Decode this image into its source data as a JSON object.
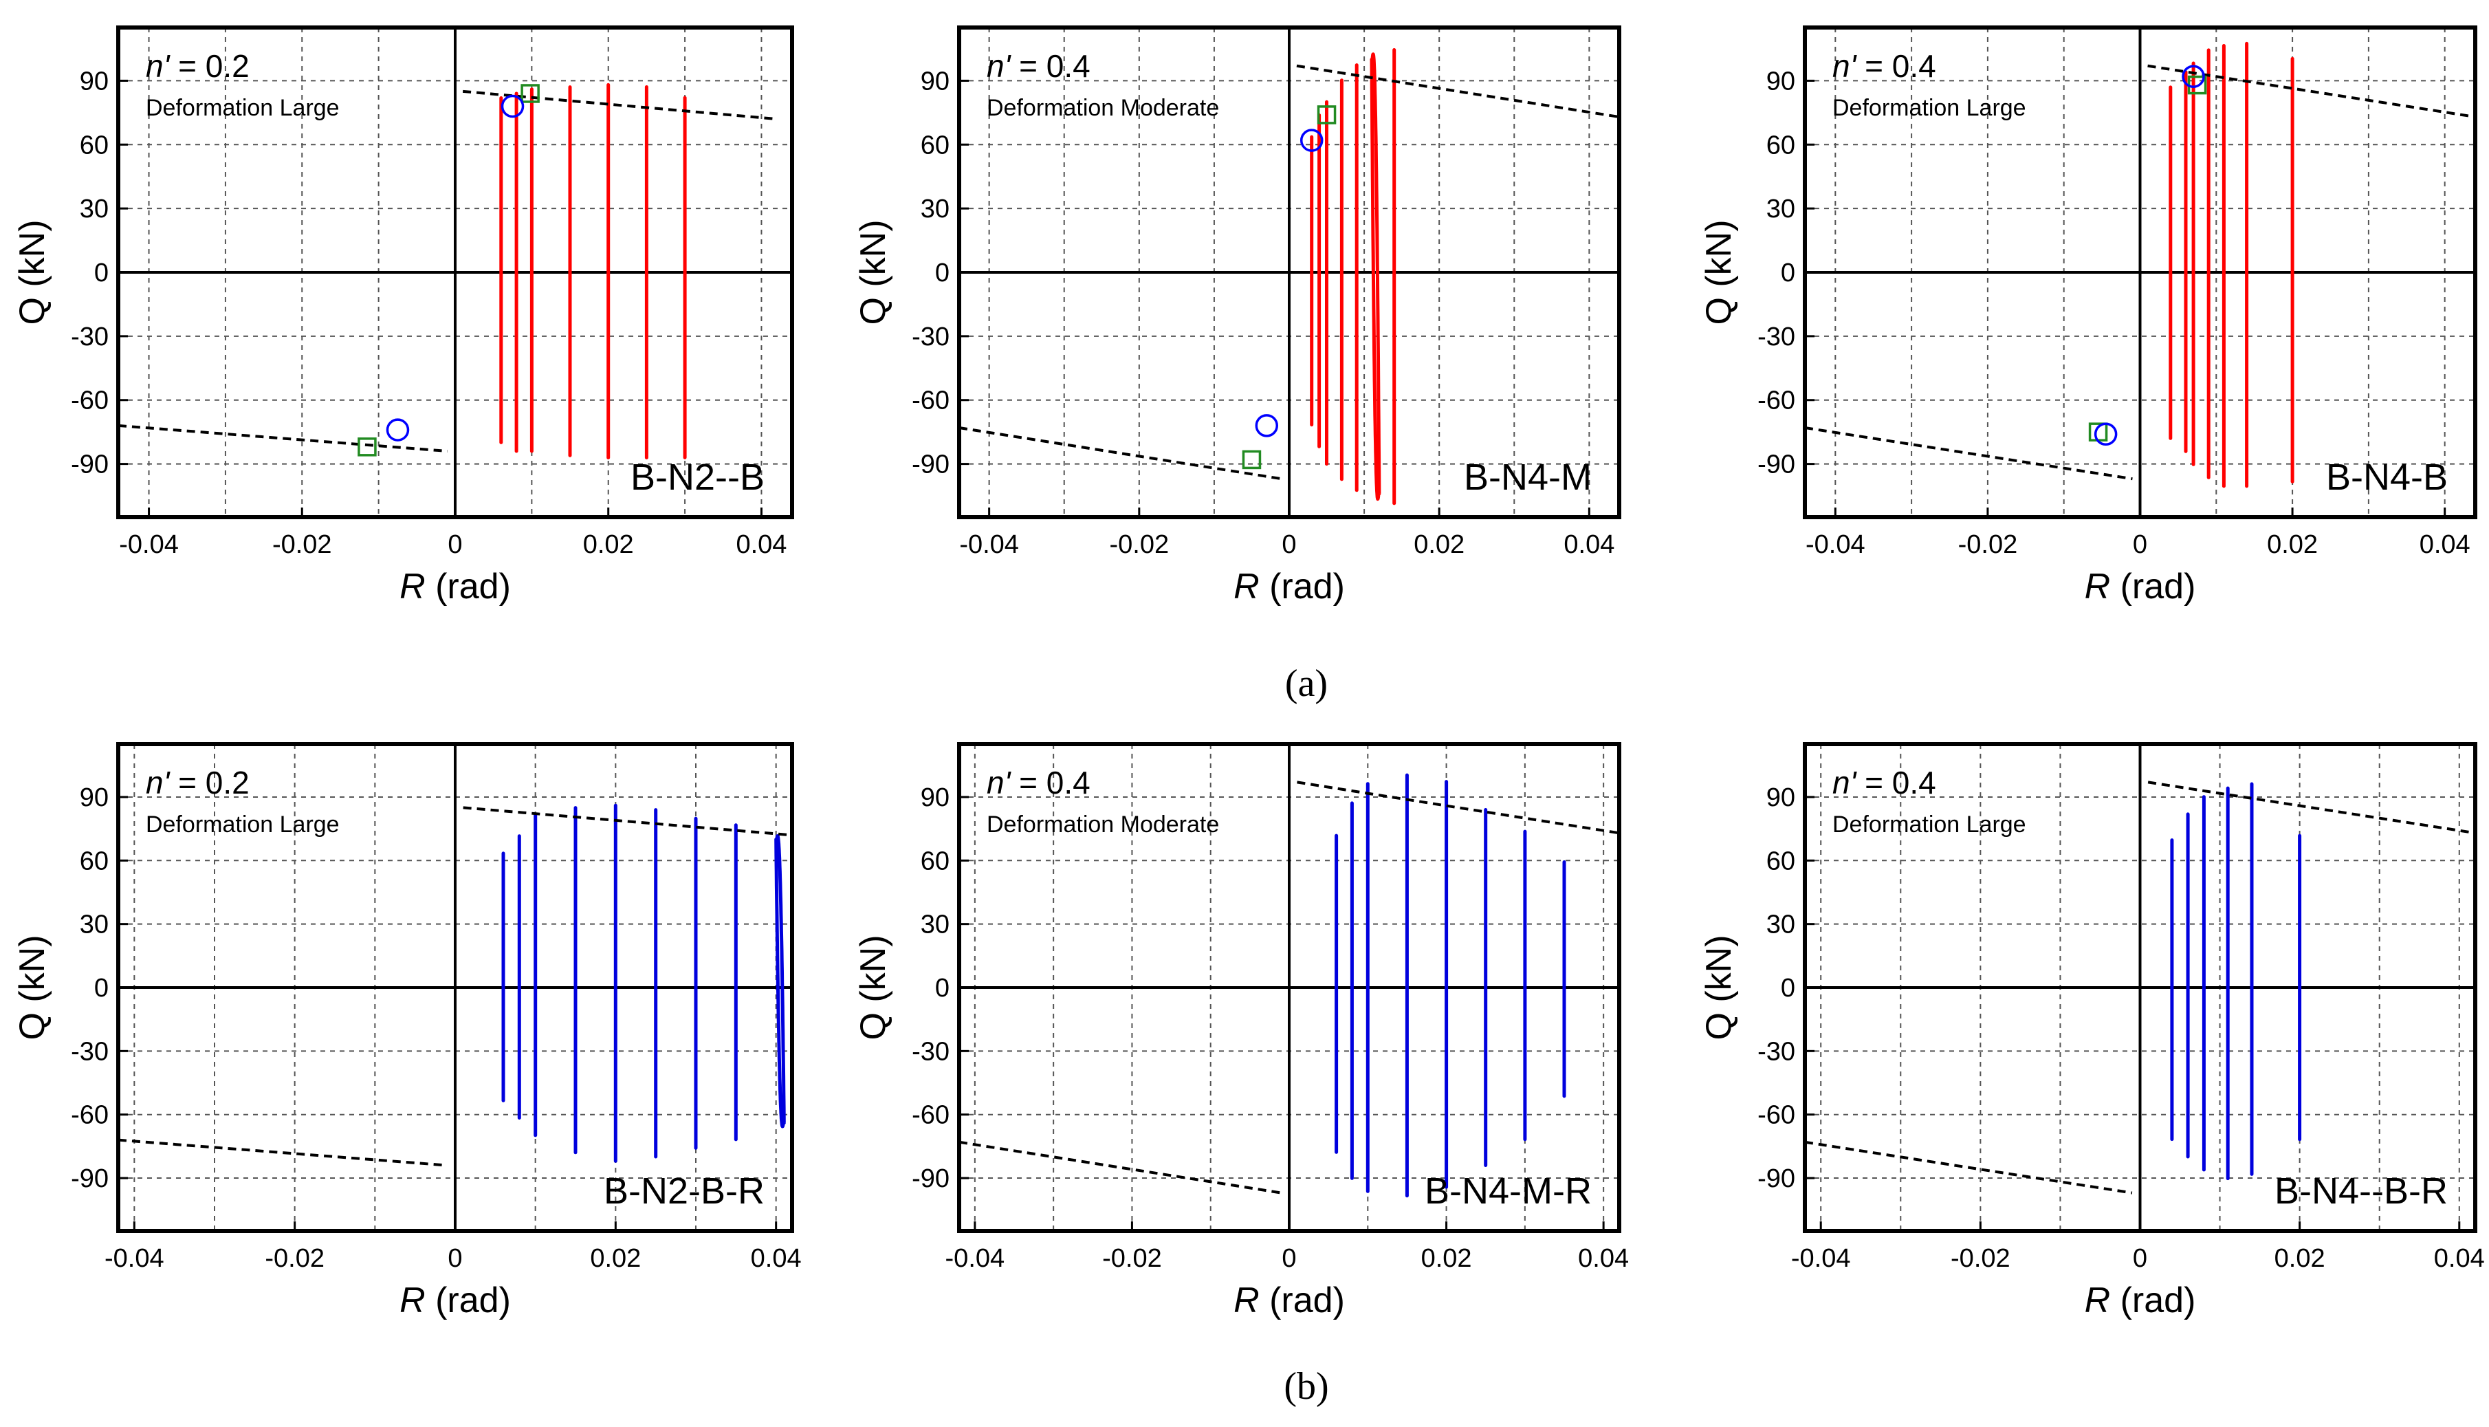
{
  "figure": {
    "row_labels": [
      "(a)",
      "(b)"
    ]
  },
  "colors": {
    "row_a": "#ff0000",
    "row_b": "#0000dd",
    "circle_marker": "#0000ff",
    "square_marker": "#228b22",
    "envelope": "#000000"
  },
  "chart_data": [
    {
      "type": "line",
      "row": 0,
      "col": 0,
      "title": "",
      "name": "B-N2--B",
      "annotation": "n' = 0.2",
      "annotation_n": "n'",
      "annotation_value": " = 0.2",
      "deformation": "Deformation Large",
      "xlabel": "R",
      "xunit": " (rad)",
      "ylabel": "Q (kN)",
      "xlim": [
        -0.044,
        0.044
      ],
      "ylim": [
        -115,
        115
      ],
      "xticks": [
        "-0.04",
        "-0.02",
        "0",
        "0.02",
        "0.04"
      ],
      "yticks": [
        "90",
        "60",
        "30",
        "0",
        "-30",
        "-60",
        "-90"
      ],
      "ytick_values": [
        90,
        60,
        30,
        0,
        -30,
        -60,
        -90
      ],
      "xtick_values": [
        -0.04,
        -0.02,
        0,
        0.02,
        0.04
      ],
      "loops": [
        [
          0.006,
          80,
          0.006,
          -78
        ],
        [
          0.008,
          82,
          0.008,
          -82
        ],
        [
          0.01,
          84,
          0.01,
          -82
        ],
        [
          0.015,
          85,
          0.015,
          -84
        ],
        [
          0.02,
          86,
          0.02,
          -85
        ],
        [
          0.025,
          85,
          0.025,
          -85
        ],
        [
          0.03,
          80,
          0.03,
          -85
        ]
      ],
      "envelope_pos": {
        "x": [
          0.001,
          0.042
        ],
        "y": [
          85,
          72
        ]
      },
      "envelope_neg": {
        "x": [
          -0.044,
          -0.001
        ],
        "y": [
          -72,
          -84
        ]
      },
      "circles": [
        {
          "x": 0.0075,
          "y": 78
        },
        {
          "x": -0.0075,
          "y": -74
        }
      ],
      "squares": [
        {
          "x": 0.0098,
          "y": 84
        },
        {
          "x": -0.0115,
          "y": -82
        }
      ]
    },
    {
      "type": "line",
      "row": 0,
      "col": 1,
      "title": "",
      "name": "B-N4-M",
      "annotation": "n' = 0.4",
      "annotation_n": "n'",
      "annotation_value": " = 0.4",
      "deformation": "Deformation Moderate",
      "xlabel": "R",
      "xunit": " (rad)",
      "ylabel": "Q (kN)",
      "xlim": [
        -0.044,
        0.044
      ],
      "ylim": [
        -115,
        115
      ],
      "xticks": [
        "-0.04",
        "-0.02",
        "0",
        "0.02",
        "0.04"
      ],
      "yticks": [
        "90",
        "60",
        "30",
        "0",
        "-30",
        "-60",
        "-90"
      ],
      "ytick_values": [
        90,
        60,
        30,
        0,
        -30,
        -60,
        -90
      ],
      "xtick_values": [
        -0.04,
        -0.02,
        0,
        0.02,
        0.04
      ],
      "loops": [
        [
          0.003,
          62,
          0.003,
          -70
        ],
        [
          0.004,
          72,
          0.004,
          -80
        ],
        [
          0.005,
          78,
          0.005,
          -88
        ],
        [
          0.007,
          88,
          0.007,
          -95
        ],
        [
          0.009,
          95,
          0.009,
          -100
        ],
        [
          0.011,
          100,
          0.012,
          -104
        ],
        [
          0.014,
          102,
          0.014,
          -106
        ]
      ],
      "envelope_pos": {
        "x": [
          0.001,
          0.044
        ],
        "y": [
          97,
          73
        ]
      },
      "envelope_neg": {
        "x": [
          -0.044,
          -0.001
        ],
        "y": [
          -73,
          -97
        ]
      },
      "circles": [
        {
          "x": 0.003,
          "y": 62
        },
        {
          "x": -0.003,
          "y": -72
        }
      ],
      "squares": [
        {
          "x": 0.005,
          "y": 74
        },
        {
          "x": -0.005,
          "y": -88
        }
      ]
    },
    {
      "type": "line",
      "row": 0,
      "col": 2,
      "title": "",
      "name": "B-N4-B",
      "annotation": "n' = 0.4",
      "annotation_n": "n'",
      "annotation_value": " = 0.4",
      "deformation": "Deformation Large",
      "xlabel": "R",
      "xunit": " (rad)",
      "ylabel": "Q (kN)",
      "xlim": [
        -0.044,
        0.044
      ],
      "ylim": [
        -115,
        115
      ],
      "xticks": [
        "-0.04",
        "-0.02",
        "0",
        "0.02",
        "0.04"
      ],
      "yticks": [
        "90",
        "60",
        "30",
        "0",
        "-30",
        "-60",
        "-90"
      ],
      "ytick_values": [
        90,
        60,
        30,
        0,
        -30,
        -60,
        -90
      ],
      "xtick_values": [
        -0.04,
        -0.02,
        0,
        0.02,
        0.04
      ],
      "loops": [
        [
          0.004,
          85,
          0.004,
          -76
        ],
        [
          0.006,
          92,
          0.006,
          -82
        ],
        [
          0.007,
          96,
          0.007,
          -88
        ],
        [
          0.009,
          102,
          0.009,
          -94
        ],
        [
          0.011,
          104,
          0.011,
          -98
        ],
        [
          0.014,
          105,
          0.014,
          -98
        ],
        [
          0.02,
          98,
          0.02,
          -96
        ]
      ],
      "envelope_pos": {
        "x": [
          0.001,
          0.044
        ],
        "y": [
          97,
          73
        ]
      },
      "envelope_neg": {
        "x": [
          -0.044,
          -0.001
        ],
        "y": [
          -73,
          -97
        ]
      },
      "circles": [
        {
          "x": 0.007,
          "y": 92
        },
        {
          "x": -0.0045,
          "y": -76
        }
      ],
      "squares": [
        {
          "x": 0.0075,
          "y": 88
        },
        {
          "x": -0.0055,
          "y": -75
        }
      ]
    },
    {
      "type": "line",
      "row": 1,
      "col": 0,
      "title": "",
      "name": "B-N2-B-R",
      "annotation": "n' = 0.2",
      "annotation_n": "n'",
      "annotation_value": " = 0.2",
      "deformation": "Deformation Large",
      "xlabel": "R",
      "xunit": " (rad)",
      "ylabel": "Q (kN)",
      "xlim": [
        -0.042,
        0.042
      ],
      "ylim": [
        -115,
        115
      ],
      "xticks": [
        "-0.04",
        "-0.02",
        "0",
        "0.02",
        "0.04"
      ],
      "yticks": [
        "90",
        "60",
        "30",
        "0",
        "-30",
        "-60",
        "-90"
      ],
      "ytick_values": [
        90,
        60,
        30,
        0,
        -30,
        -60,
        -90
      ],
      "xtick_values": [
        -0.04,
        -0.02,
        0,
        0.02,
        0.04
      ],
      "loops": [
        [
          0.006,
          62,
          0.006,
          -52
        ],
        [
          0.008,
          70,
          0.008,
          -60
        ],
        [
          0.01,
          80,
          0.01,
          -68
        ],
        [
          0.015,
          83,
          0.015,
          -76
        ],
        [
          0.02,
          84,
          0.02,
          -80
        ],
        [
          0.025,
          82,
          0.025,
          -78
        ],
        [
          0.03,
          78,
          0.03,
          -74
        ],
        [
          0.035,
          75,
          0.035,
          -70
        ],
        [
          0.04,
          70,
          0.041,
          -64
        ]
      ],
      "envelope_pos": {
        "x": [
          0.001,
          0.042
        ],
        "y": [
          85,
          72
        ]
      },
      "envelope_neg": {
        "x": [
          -0.042,
          -0.001
        ],
        "y": [
          -72,
          -84
        ]
      },
      "circles": [],
      "squares": []
    },
    {
      "type": "line",
      "row": 1,
      "col": 1,
      "title": "",
      "name": "B-N4-M-R",
      "annotation": "n' = 0.4",
      "annotation_n": "n'",
      "annotation_value": " = 0.4",
      "deformation": "Deformation Moderate",
      "xlabel": "R",
      "xunit": " (rad)",
      "ylabel": "Q (kN)",
      "xlim": [
        -0.042,
        0.042
      ],
      "ylim": [
        -115,
        115
      ],
      "xticks": [
        "-0.04",
        "-0.02",
        "0",
        "0.02",
        "0.04"
      ],
      "yticks": [
        "90",
        "60",
        "30",
        "0",
        "-30",
        "-60",
        "-90"
      ],
      "ytick_values": [
        90,
        60,
        30,
        0,
        -30,
        -60,
        -90
      ],
      "xtick_values": [
        -0.04,
        -0.02,
        0,
        0.02,
        0.04
      ],
      "loops": [
        [
          0.006,
          70,
          0.006,
          -76
        ],
        [
          0.008,
          85,
          0.008,
          -88
        ],
        [
          0.01,
          94,
          0.01,
          -94
        ],
        [
          0.015,
          98,
          0.015,
          -96
        ],
        [
          0.02,
          95,
          0.02,
          -92
        ],
        [
          0.025,
          82,
          0.025,
          -82
        ],
        [
          0.03,
          72,
          0.03,
          -70
        ],
        [
          0.035,
          58,
          0.035,
          -50
        ]
      ],
      "envelope_pos": {
        "x": [
          0.001,
          0.042
        ],
        "y": [
          97,
          73
        ]
      },
      "envelope_neg": {
        "x": [
          -0.042,
          -0.001
        ],
        "y": [
          -73,
          -97
        ]
      },
      "circles": [],
      "squares": []
    },
    {
      "type": "line",
      "row": 1,
      "col": 2,
      "title": "",
      "name": "B-N4--B-R",
      "annotation": "n' = 0.4",
      "annotation_n": "n'",
      "annotation_value": " = 0.4",
      "deformation": "Deformation Large",
      "xlabel": "R",
      "xunit": " (rad)",
      "ylabel": "Q (kN)",
      "xlim": [
        -0.042,
        0.042
      ],
      "ylim": [
        -115,
        115
      ],
      "xticks": [
        "-0.04",
        "-0.02",
        "0",
        "0.02",
        "0.04"
      ],
      "yticks": [
        "90",
        "60",
        "30",
        "0",
        "-30",
        "-60",
        "-90"
      ],
      "ytick_values": [
        90,
        60,
        30,
        0,
        -30,
        -60,
        -90
      ],
      "xtick_values": [
        -0.04,
        -0.02,
        0,
        0.02,
        0.04
      ],
      "loops": [
        [
          0.004,
          68,
          0.004,
          -70
        ],
        [
          0.006,
          80,
          0.006,
          -78
        ],
        [
          0.008,
          88,
          0.008,
          -84
        ],
        [
          0.011,
          92,
          0.011,
          -88
        ],
        [
          0.014,
          94,
          0.014,
          -86
        ],
        [
          0.02,
          70,
          0.02,
          -70
        ]
      ],
      "envelope_pos": {
        "x": [
          0.001,
          0.042
        ],
        "y": [
          97,
          73
        ]
      },
      "envelope_neg": {
        "x": [
          -0.042,
          -0.001
        ],
        "y": [
          -73,
          -97
        ]
      },
      "circles": [],
      "squares": []
    }
  ]
}
